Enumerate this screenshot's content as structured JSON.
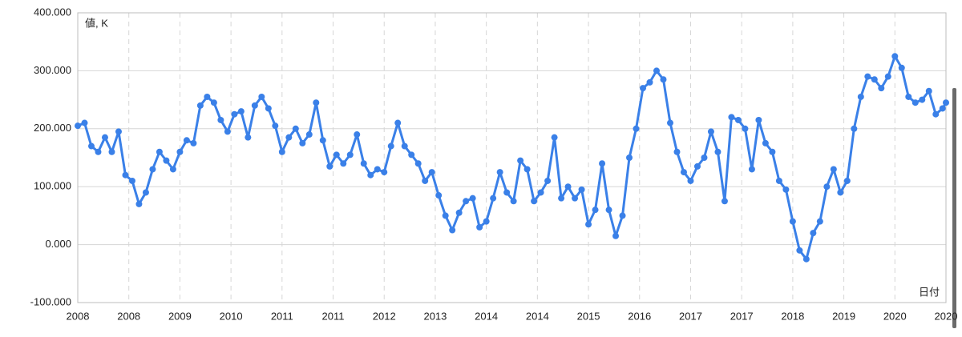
{
  "chart_data": {
    "type": "line",
    "y_label": "値, K",
    "x_label": "日付",
    "xlim": [
      2008,
      2020.75
    ],
    "xticks": [
      {
        "value": 2008,
        "label": "2008"
      },
      {
        "value": 2008.75,
        "label": "2008"
      },
      {
        "value": 2009.5,
        "label": "2009"
      },
      {
        "value": 2010.25,
        "label": "2010"
      },
      {
        "value": 2011,
        "label": "2011"
      },
      {
        "value": 2011.75,
        "label": "2011"
      },
      {
        "value": 2012.5,
        "label": "2012"
      },
      {
        "value": 2013.25,
        "label": "2013"
      },
      {
        "value": 2014,
        "label": "2014"
      },
      {
        "value": 2014.75,
        "label": "2014"
      },
      {
        "value": 2015.5,
        "label": "2015"
      },
      {
        "value": 2016.25,
        "label": "2016"
      },
      {
        "value": 2017,
        "label": "2017"
      },
      {
        "value": 2017.75,
        "label": "2017"
      },
      {
        "value": 2018.5,
        "label": "2018"
      },
      {
        "value": 2019.25,
        "label": "2019"
      },
      {
        "value": 2020,
        "label": "2020"
      },
      {
        "value": 2020.75,
        "label": "2020"
      }
    ],
    "ylim": [
      -100,
      400
    ],
    "yticks": [
      {
        "value": -100,
        "label": "-100.000"
      },
      {
        "value": 0,
        "label": "0.000"
      },
      {
        "value": 100,
        "label": "100.000"
      },
      {
        "value": 200,
        "label": "200.000"
      },
      {
        "value": 300,
        "label": "300.000"
      },
      {
        "value": 400,
        "label": "400.000"
      }
    ],
    "grid": true,
    "x": [
      2008.0,
      2008.1,
      2008.2,
      2008.3,
      2008.4,
      2008.5,
      2008.6,
      2008.7,
      2008.8,
      2008.9,
      2009.0,
      2009.1,
      2009.2,
      2009.3,
      2009.4,
      2009.5,
      2009.6,
      2009.7,
      2009.8,
      2009.9,
      2010.0,
      2010.1,
      2010.2,
      2010.3,
      2010.4,
      2010.5,
      2010.6,
      2010.7,
      2010.8,
      2010.9,
      2011.0,
      2011.1,
      2011.2,
      2011.3,
      2011.4,
      2011.5,
      2011.6,
      2011.7,
      2011.8,
      2011.9,
      2012.0,
      2012.1,
      2012.2,
      2012.3,
      2012.4,
      2012.5,
      2012.6,
      2012.7,
      2012.8,
      2012.9,
      2013.0,
      2013.1,
      2013.2,
      2013.3,
      2013.4,
      2013.5,
      2013.6,
      2013.7,
      2013.8,
      2013.9,
      2014.0,
      2014.1,
      2014.2,
      2014.3,
      2014.4,
      2014.5,
      2014.6,
      2014.7,
      2014.8,
      2014.9,
      2015.0,
      2015.1,
      2015.2,
      2015.3,
      2015.4,
      2015.5,
      2015.6,
      2015.7,
      2015.8,
      2015.9,
      2016.0,
      2016.1,
      2016.2,
      2016.3,
      2016.4,
      2016.5,
      2016.6,
      2016.7,
      2016.8,
      2016.9,
      2017.0,
      2017.1,
      2017.2,
      2017.3,
      2017.4,
      2017.5,
      2017.6,
      2017.7,
      2017.8,
      2017.9,
      2018.0,
      2018.1,
      2018.2,
      2018.3,
      2018.4,
      2018.5,
      2018.6,
      2018.7,
      2018.8,
      2018.9,
      2019.0,
      2019.1,
      2019.2,
      2019.3,
      2019.4,
      2019.5,
      2019.6,
      2019.7,
      2019.8,
      2019.9,
      2020.0,
      2020.1,
      2020.2,
      2020.3,
      2020.4,
      2020.5,
      2020.6,
      2020.7,
      2020.75
    ],
    "series": [
      {
        "color": "#3a80e8",
        "values": [
          205,
          210,
          170,
          160,
          185,
          160,
          195,
          120,
          110,
          70,
          90,
          130,
          160,
          145,
          130,
          160,
          180,
          175,
          240,
          255,
          245,
          215,
          195,
          225,
          230,
          185,
          240,
          255,
          235,
          205,
          160,
          185,
          200,
          175,
          190,
          245,
          180,
          135,
          155,
          140,
          155,
          190,
          140,
          120,
          130,
          125,
          170,
          210,
          170,
          155,
          140,
          110,
          125,
          85,
          50,
          25,
          55,
          75,
          80,
          30,
          40,
          80,
          125,
          90,
          75,
          145,
          130,
          75,
          90,
          110,
          185,
          80,
          100,
          80,
          95,
          35,
          60,
          140,
          60,
          15,
          50,
          150,
          200,
          270,
          280,
          300,
          285,
          210,
          160,
          125,
          110,
          135,
          150,
          195,
          160,
          75,
          220,
          215,
          200,
          130,
          215,
          175,
          160,
          110,
          95,
          40,
          -10,
          -25,
          20,
          40,
          100,
          130,
          90,
          110,
          200,
          255,
          290,
          285,
          270,
          290,
          325,
          305,
          255,
          245,
          250,
          265,
          225,
          235,
          245
        ]
      }
    ]
  }
}
